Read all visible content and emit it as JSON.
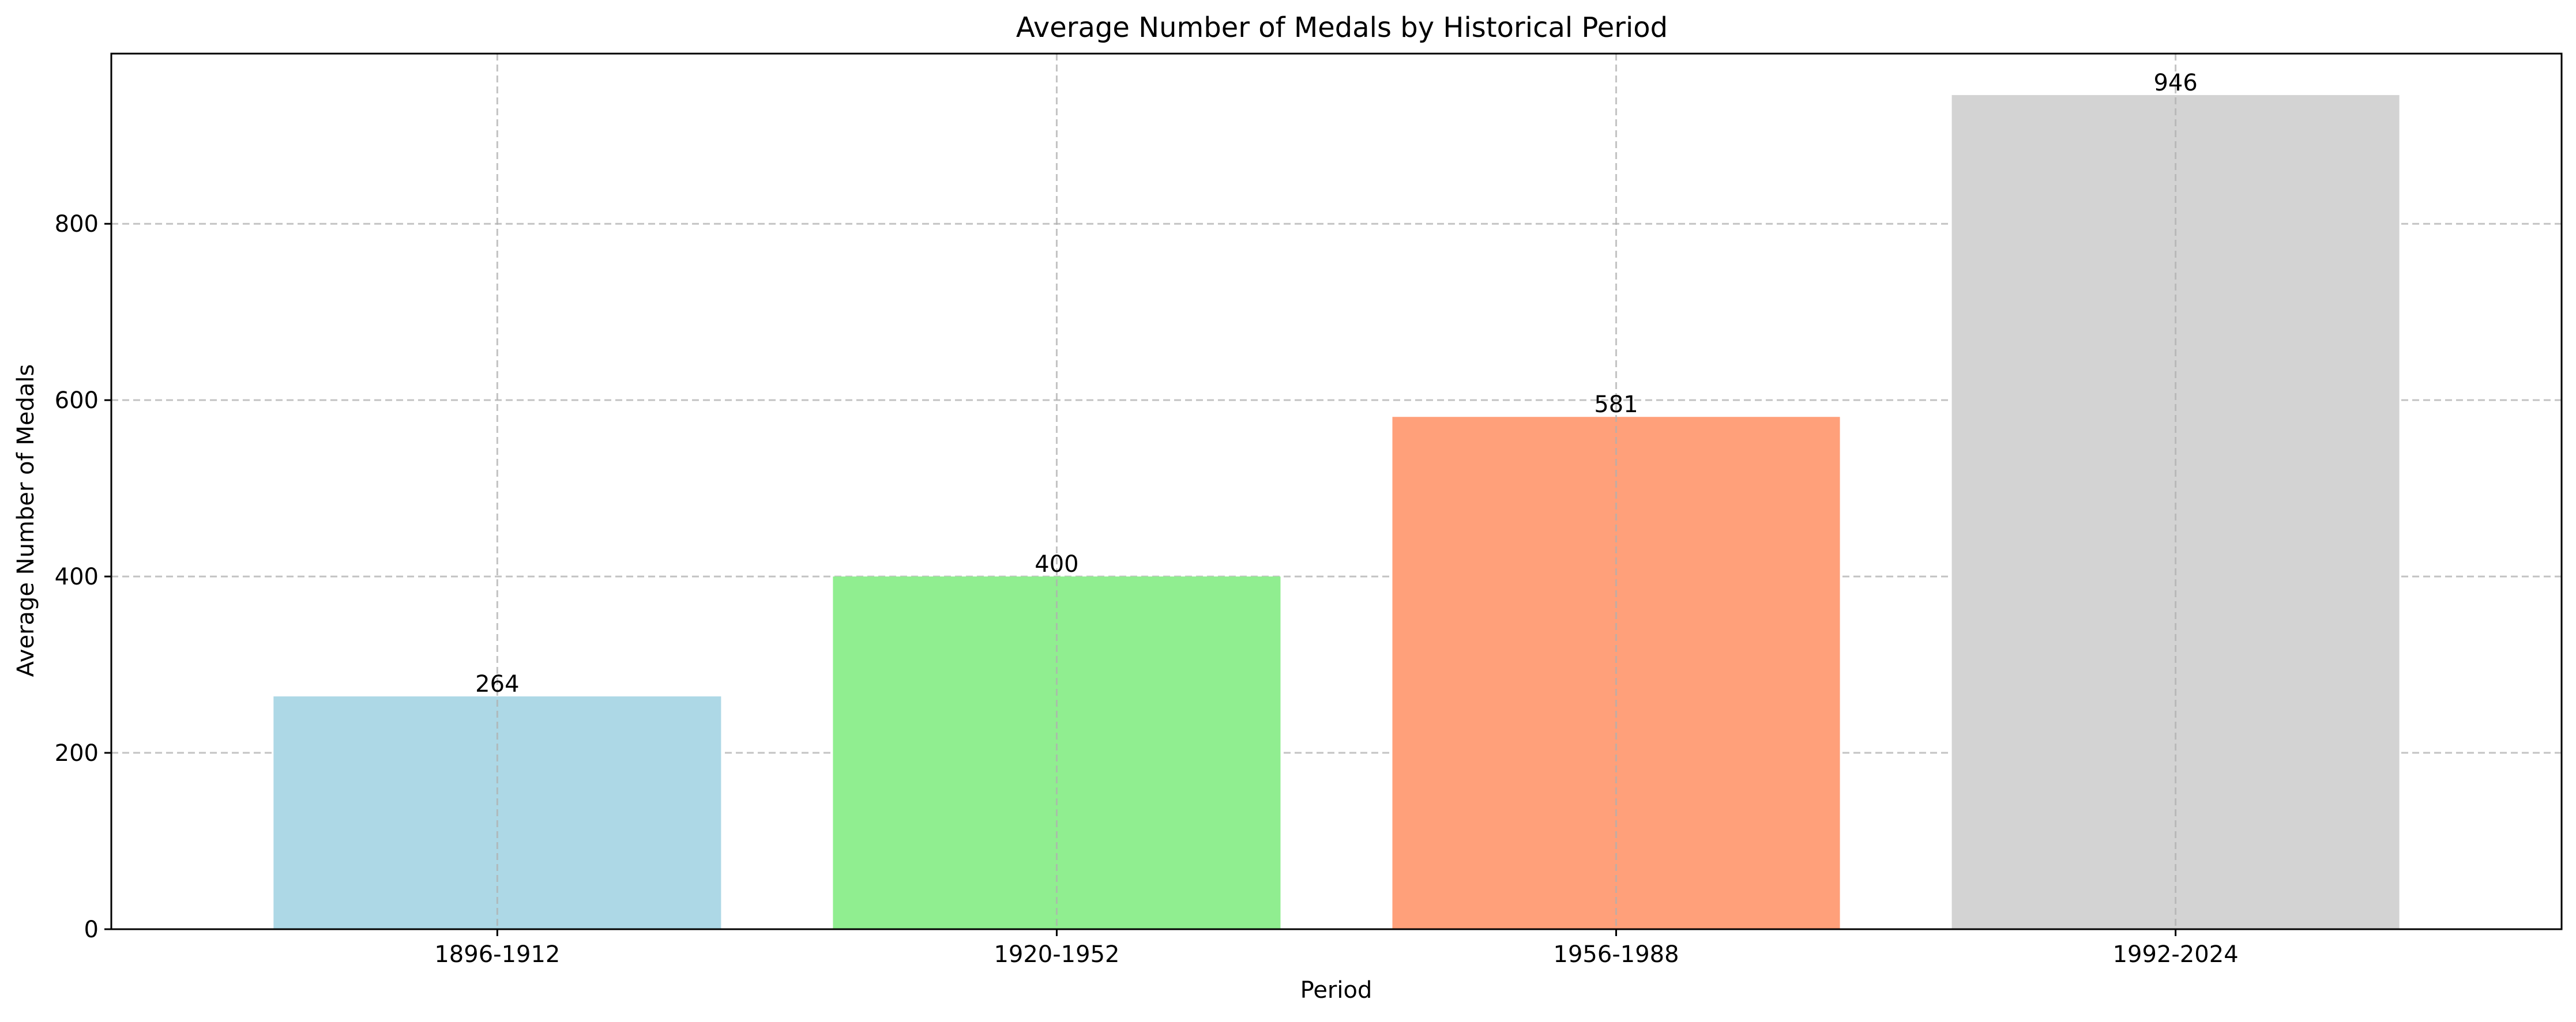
{
  "chart_data": {
    "type": "bar",
    "title": "Average Number of Medals by Historical Period",
    "xlabel": "Period",
    "ylabel": "Average Number of Medals",
    "categories": [
      "1896-1912",
      "1920-1952",
      "1956-1988",
      "1992-2024"
    ],
    "values": [
      264,
      400,
      581,
      946
    ],
    "value_labels": [
      "264",
      "400",
      "581",
      "946"
    ],
    "colors": [
      "#add8e6",
      "#90ee90",
      "#ffa07a",
      "#d3d3d3"
    ],
    "ylim": [
      0,
      993
    ],
    "yticks": [
      0,
      200,
      400,
      600,
      800
    ],
    "ytick_labels": [
      "0",
      "200",
      "400",
      "600",
      "800"
    ],
    "grid": true,
    "legend": "none"
  }
}
